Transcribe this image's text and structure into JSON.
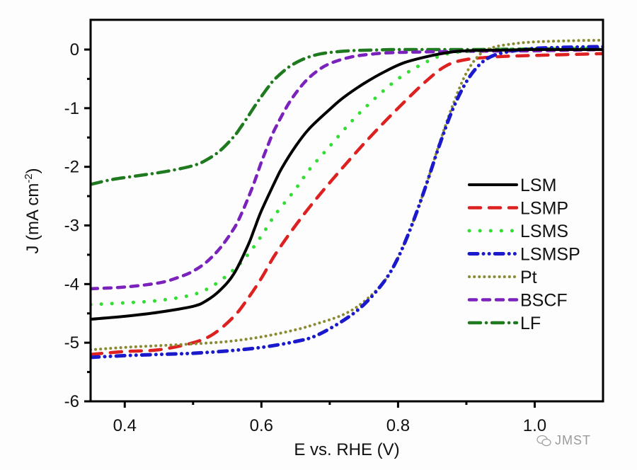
{
  "chart_data": {
    "type": "line",
    "title": "",
    "xlabel": "E vs. RHE (V)",
    "ylabel": "J (mA cm",
    "ylabel_sup": "-2",
    "ylabel_close": ")",
    "xlim": [
      0.35,
      1.1
    ],
    "ylim": [
      -6,
      0.5
    ],
    "xticks": [
      0.4,
      0.6,
      0.8,
      1.0
    ],
    "xtick_labels": [
      "0.4",
      "0.6",
      "0.8",
      "1.0"
    ],
    "xminor": [
      0.5,
      0.7,
      0.9
    ],
    "yticks": [
      0,
      -1,
      -2,
      -3,
      -4,
      -5,
      -6
    ],
    "ytick_labels": [
      "0",
      "-1",
      "-2",
      "-3",
      "-4",
      "-5",
      "-6"
    ],
    "yminor": [
      -0.5,
      -1.5,
      -2.5,
      -3.5,
      -4.5,
      -5.5
    ],
    "grid": false,
    "legend_position": "right",
    "series": [
      {
        "name": "LSM",
        "color": "#000000",
        "dash": "solid",
        "x": [
          0.35,
          0.4,
          0.45,
          0.5,
          0.52,
          0.54,
          0.56,
          0.58,
          0.59,
          0.6,
          0.62,
          0.63,
          0.65,
          0.67,
          0.7,
          0.72,
          0.75,
          0.78,
          0.81,
          0.85,
          0.88,
          0.9,
          0.95,
          1.0,
          1.1
        ],
        "y": [
          -4.6,
          -4.55,
          -4.48,
          -4.38,
          -4.28,
          -4.1,
          -3.82,
          -3.35,
          -3.05,
          -2.75,
          -2.25,
          -2.02,
          -1.65,
          -1.35,
          -1.02,
          -0.82,
          -0.58,
          -0.38,
          -0.22,
          -0.1,
          -0.04,
          -0.02,
          -0.01,
          0.0,
          0.0
        ]
      },
      {
        "name": "LSMP",
        "color": "#dd2020",
        "dash": "long-dash",
        "x": [
          0.35,
          0.4,
          0.45,
          0.5,
          0.53,
          0.56,
          0.58,
          0.6,
          0.62,
          0.65,
          0.68,
          0.72,
          0.76,
          0.8,
          0.84,
          0.87,
          0.9,
          0.95,
          1.0,
          1.1
        ],
        "y": [
          -5.2,
          -5.15,
          -5.12,
          -5.0,
          -4.85,
          -4.55,
          -4.25,
          -3.9,
          -3.5,
          -3.0,
          -2.55,
          -2.0,
          -1.48,
          -1.0,
          -0.55,
          -0.28,
          -0.17,
          -0.12,
          -0.1,
          -0.07
        ]
      },
      {
        "name": "LSMS",
        "color": "#33dd33",
        "dash": "dot-spaced",
        "x": [
          0.35,
          0.4,
          0.45,
          0.5,
          0.53,
          0.56,
          0.58,
          0.6,
          0.62,
          0.65,
          0.67,
          0.7,
          0.73,
          0.76,
          0.8,
          0.84,
          0.87,
          0.9,
          0.95,
          1.0,
          1.1
        ],
        "y": [
          -4.35,
          -4.32,
          -4.28,
          -4.18,
          -4.02,
          -3.75,
          -3.5,
          -3.18,
          -2.82,
          -2.38,
          -2.05,
          -1.65,
          -1.25,
          -0.9,
          -0.5,
          -0.22,
          -0.08,
          -0.03,
          0.0,
          0.01,
          0.02
        ]
      },
      {
        "name": "LSMSP",
        "color": "#1a1acc",
        "dash": "dash-dot-dot",
        "x": [
          0.35,
          0.4,
          0.45,
          0.5,
          0.55,
          0.6,
          0.65,
          0.68,
          0.72,
          0.75,
          0.78,
          0.8,
          0.82,
          0.84,
          0.86,
          0.88,
          0.9,
          0.92,
          0.94,
          0.97,
          1.0,
          1.05,
          1.1
        ],
        "y": [
          -5.25,
          -5.22,
          -5.2,
          -5.18,
          -5.14,
          -5.08,
          -4.98,
          -4.88,
          -4.62,
          -4.35,
          -3.95,
          -3.55,
          -3.0,
          -2.35,
          -1.65,
          -1.02,
          -0.55,
          -0.25,
          -0.1,
          -0.02,
          0.02,
          0.04,
          0.05
        ]
      },
      {
        "name": "Pt",
        "color": "#8a8a33",
        "dash": "dotted",
        "x": [
          0.35,
          0.4,
          0.45,
          0.5,
          0.55,
          0.6,
          0.65,
          0.68,
          0.72,
          0.75,
          0.78,
          0.8,
          0.82,
          0.84,
          0.86,
          0.88,
          0.9,
          0.92,
          0.94,
          0.97,
          1.0,
          1.05,
          1.1
        ],
        "y": [
          -5.12,
          -5.08,
          -5.05,
          -5.02,
          -4.98,
          -4.9,
          -4.78,
          -4.68,
          -4.52,
          -4.3,
          -3.95,
          -3.55,
          -3.0,
          -2.35,
          -1.62,
          -0.95,
          -0.4,
          -0.08,
          0.04,
          0.1,
          0.13,
          0.15,
          0.16
        ]
      },
      {
        "name": "BSCF",
        "color": "#7a22bb",
        "dash": "short-dash",
        "x": [
          0.35,
          0.4,
          0.45,
          0.48,
          0.5,
          0.52,
          0.54,
          0.56,
          0.57,
          0.58,
          0.59,
          0.6,
          0.61,
          0.62,
          0.64,
          0.66,
          0.68,
          0.7,
          0.73,
          0.76,
          0.8,
          0.9,
          1.0,
          1.1
        ],
        "y": [
          -4.08,
          -4.05,
          -3.98,
          -3.88,
          -3.78,
          -3.62,
          -3.38,
          -3.05,
          -2.82,
          -2.55,
          -2.25,
          -1.92,
          -1.62,
          -1.35,
          -0.92,
          -0.6,
          -0.38,
          -0.24,
          -0.13,
          -0.08,
          -0.05,
          -0.03,
          -0.02,
          0.0
        ]
      },
      {
        "name": "LF",
        "color": "#1f7a1f",
        "dash": "dash-dot",
        "x": [
          0.35,
          0.38,
          0.42,
          0.46,
          0.5,
          0.52,
          0.54,
          0.56,
          0.57,
          0.58,
          0.59,
          0.6,
          0.61,
          0.62,
          0.64,
          0.66,
          0.68,
          0.7,
          0.73,
          0.76,
          0.8,
          0.9,
          1.0,
          1.1
        ],
        "y": [
          -2.3,
          -2.22,
          -2.15,
          -2.08,
          -1.98,
          -1.88,
          -1.72,
          -1.48,
          -1.32,
          -1.15,
          -0.97,
          -0.8,
          -0.64,
          -0.5,
          -0.3,
          -0.17,
          -0.09,
          -0.05,
          -0.02,
          -0.01,
          0.0,
          0.0,
          0.01,
          0.02
        ]
      }
    ]
  },
  "watermark": {
    "text": "JMST",
    "icon": "wechat-icon"
  }
}
